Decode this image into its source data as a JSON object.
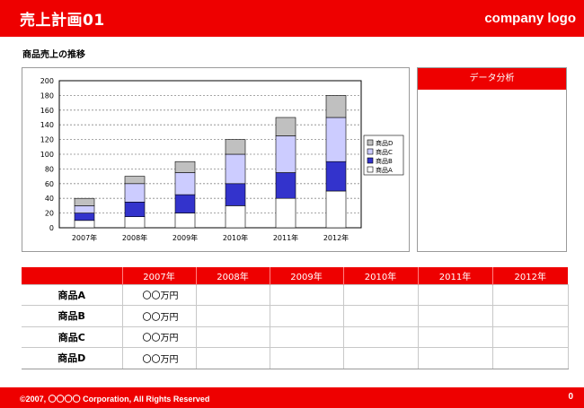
{
  "header": {
    "title": "売上計画01",
    "logo": "company logo"
  },
  "section_title": "商品売上の推移",
  "analysis": {
    "title": "データ分析"
  },
  "colors": {
    "accent": "#ee0000",
    "productA": "#ffffff",
    "productB": "#3333cc",
    "productC": "#ccccff",
    "productD": "#c0c0c0"
  },
  "chart_data": {
    "type": "bar",
    "stacked": true,
    "categories": [
      "2007年",
      "2008年",
      "2009年",
      "2010年",
      "2011年",
      "2012年"
    ],
    "series": [
      {
        "name": "商品A",
        "values": [
          10,
          15,
          20,
          30,
          40,
          50
        ]
      },
      {
        "name": "商品B",
        "values": [
          10,
          20,
          25,
          30,
          35,
          40
        ]
      },
      {
        "name": "商品C",
        "values": [
          10,
          25,
          30,
          40,
          50,
          60
        ]
      },
      {
        "name": "商品D",
        "values": [
          10,
          10,
          15,
          20,
          25,
          30
        ]
      }
    ],
    "y_ticks": [
      "0",
      "20",
      "40",
      "60",
      "80",
      "100",
      "120",
      "140",
      "160",
      "180",
      "200"
    ],
    "ylim": [
      0,
      200
    ],
    "grid": true,
    "legend_position": "right"
  },
  "table": {
    "headers": [
      "",
      "2007年",
      "2008年",
      "2009年",
      "2010年",
      "2011年",
      "2012年"
    ],
    "rows": [
      {
        "label": "商品A",
        "cells": [
          "〇〇万円",
          "",
          "",
          "",
          "",
          ""
        ]
      },
      {
        "label": "商品B",
        "cells": [
          "〇〇万円",
          "",
          "",
          "",
          "",
          ""
        ]
      },
      {
        "label": "商品C",
        "cells": [
          "〇〇万円",
          "",
          "",
          "",
          "",
          ""
        ]
      },
      {
        "label": "商品D",
        "cells": [
          "〇〇万円",
          "",
          "",
          "",
          "",
          ""
        ]
      }
    ]
  },
  "footer": {
    "copyright": "©2007, 〇〇〇〇 Corporation, All Rights Reserved",
    "page": "0"
  }
}
